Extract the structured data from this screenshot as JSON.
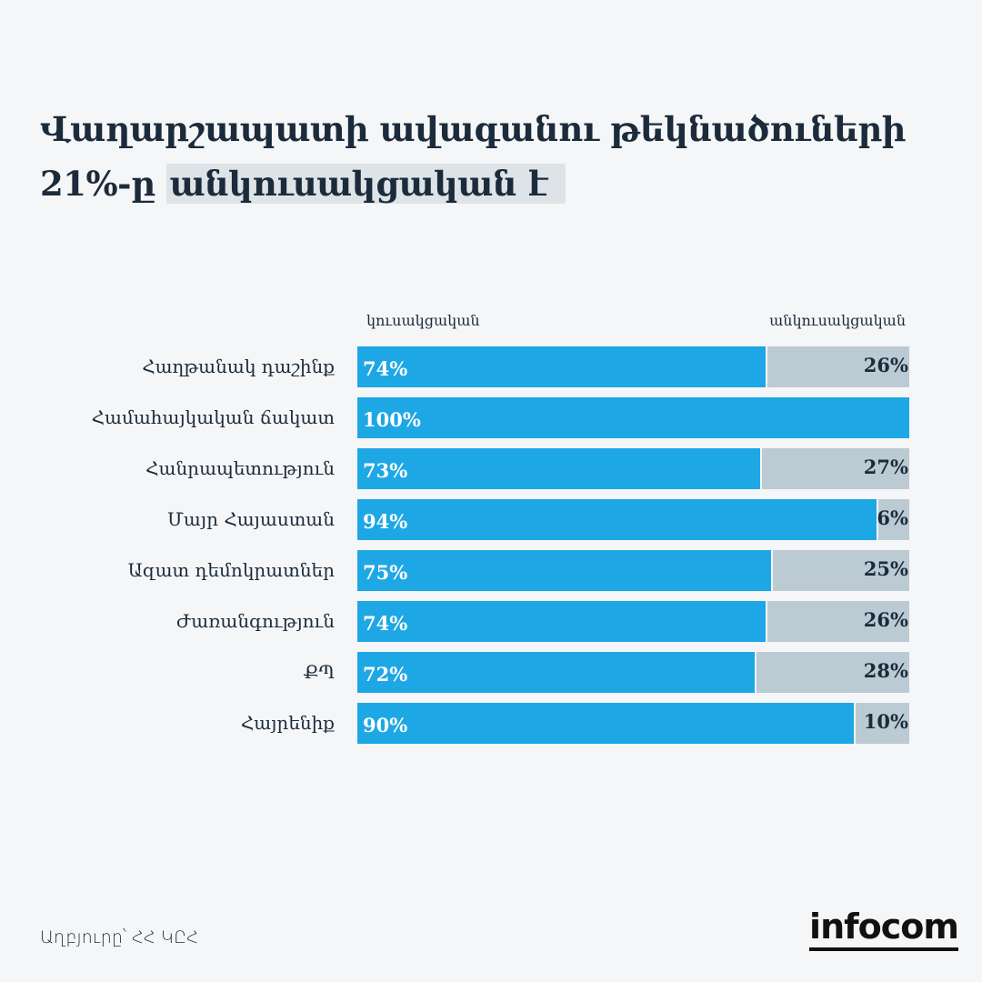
{
  "title": {
    "line1": "Վաղարշապատի ավագանու թեկնածուների",
    "line2_prefix": "21%-ը",
    "line2_highlight": "անկուսակցական է"
  },
  "colors": {
    "party": "#1ea7e5",
    "nonparty": "#bccad3",
    "text": "#1b2b3b"
  },
  "chart_data": {
    "type": "bar",
    "stacked": true,
    "orientation": "horizontal",
    "title": "Վաղարշապատի ավագանու թեկնածուների 21%-ը անկուսակցական է",
    "series": [
      {
        "name": "կուսակցական",
        "values": [
          74,
          100,
          73,
          94,
          75,
          74,
          72,
          90
        ],
        "labels": [
          "74%",
          "100%",
          "73%",
          "94%",
          "75%",
          "74%",
          "72%",
          "90%"
        ]
      },
      {
        "name": "անկուսակցական",
        "values": [
          26,
          0,
          27,
          6,
          25,
          26,
          28,
          10
        ],
        "labels": [
          "26%",
          "",
          "27%",
          "6%",
          "25%",
          "26%",
          "28%",
          "10%"
        ]
      }
    ],
    "categories": [
      "Հաղթանակ դաշինք",
      "Համահայկական ճակատ",
      "Հանրապետություն",
      "Մայր Հայաստան",
      "Ազատ դեմոկրատներ",
      "Ժառանգություն",
      "ՔՊ",
      "Հայրենիք"
    ],
    "xlim": [
      0,
      100
    ],
    "legend": "top"
  },
  "source": "Աղբյուրը՝ ՀՀ ԿԸՀ",
  "logo": "infocom"
}
